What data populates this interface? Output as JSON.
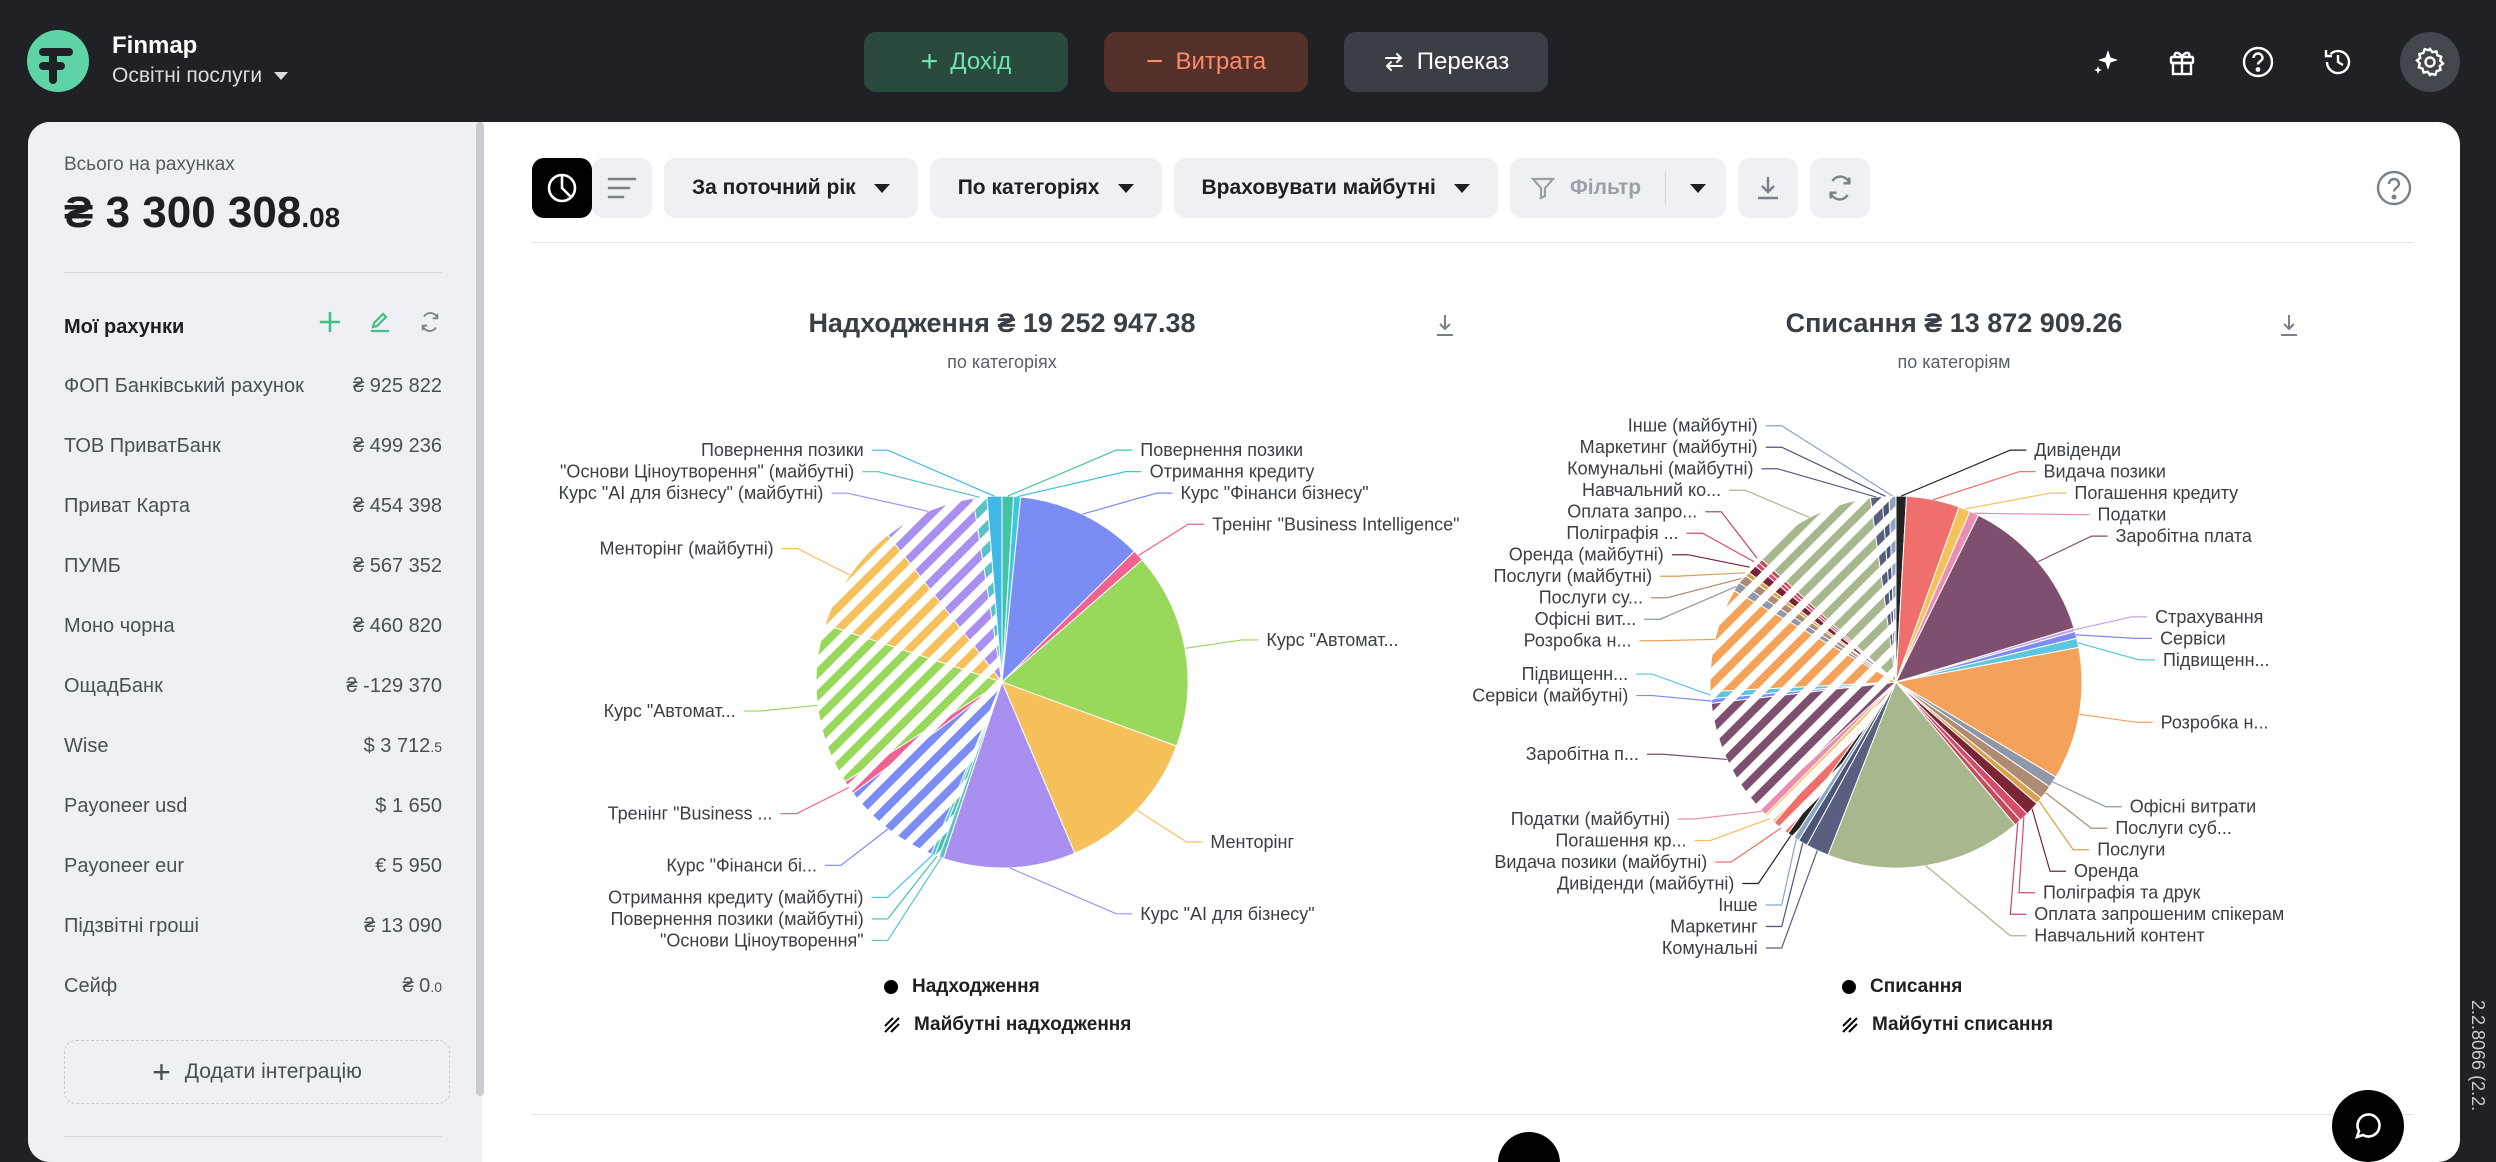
{
  "app": {
    "brand": "Finmap",
    "company": "Освітні послуги"
  },
  "top_actions": {
    "income": "Дохід",
    "expense": "Витрата",
    "transfer": "Переказ"
  },
  "top_icons": [
    "sparkle-icon",
    "gift-icon",
    "help-icon",
    "history-icon",
    "gear-icon"
  ],
  "version": "2.2.8066 (2.2.",
  "sidebar": {
    "total_label": "Всього на рахунках",
    "total_main": "₴ 3 300 308",
    "total_cents": ".08",
    "accounts_title": "Мої рахунки",
    "accounts": [
      {
        "name": "ФОП Банківський рахунок",
        "amount": "₴ 925 822",
        "cents": ""
      },
      {
        "name": "ТОВ ПриватБанк",
        "amount": "₴ 499 236",
        "cents": ""
      },
      {
        "name": "Приват Карта",
        "amount": "₴ 454 398",
        "cents": ""
      },
      {
        "name": "ПУМБ",
        "amount": "₴ 567 352",
        "cents": ""
      },
      {
        "name": "Моно чорна",
        "amount": "₴ 460 820",
        "cents": ""
      },
      {
        "name": "ОщадБанк",
        "amount": "₴ -129 370",
        "cents": ""
      },
      {
        "name": "Wise",
        "amount": "$  3 712",
        "cents": ".5"
      },
      {
        "name": "Payoneer usd",
        "amount": "$  1 650",
        "cents": ""
      },
      {
        "name": "Payoneer eur",
        "amount": "€ 5 950",
        "cents": ""
      },
      {
        "name": "Підзвітні гроші",
        "amount": "₴ 13 090",
        "cents": ""
      },
      {
        "name": "Сейф",
        "amount": "₴ 0",
        "cents": ".0"
      }
    ],
    "add_integration": "Додати інтеграцію"
  },
  "toolbar": {
    "period": "За поточний рік",
    "grouping": "По категоріях",
    "future": "Враховувати майбутні",
    "filter": "Фільтр"
  },
  "colors": {
    "income_btn": "#2a4a3d",
    "expense_btn": "#533029",
    "accent_green": "#5fd3a8"
  },
  "chart_data": [
    {
      "type": "pie",
      "title": "Надходження ₴ 19 252 947.38",
      "subtitle": "по категоріях",
      "legend": [
        "Надходження",
        "Майбутні надходження"
      ],
      "slices": [
        {
          "label": "Повернення позики",
          "value": 1.0,
          "color": "#43c3a6",
          "future": false
        },
        {
          "label": "Отримання кредиту",
          "value": 0.6,
          "color": "#3ec7e3",
          "future": false
        },
        {
          "label": "Курс \"Фінанси бізнесу\"",
          "value": 11.0,
          "color": "#7b8cf5",
          "future": false
        },
        {
          "label": "Тренінг \"Business Intelligence\"",
          "value": 1.0,
          "color": "#f06292",
          "future": false
        },
        {
          "label": "Курс \"Автомат...",
          "value": 17.0,
          "color": "#98d85b",
          "future": false
        },
        {
          "label": "Менторінг",
          "value": 13.0,
          "color": "#f6c15a",
          "future": false
        },
        {
          "label": "Курс \"AI для бізнесу\"",
          "value": 11.5,
          "color": "#a98ff0",
          "future": false
        },
        {
          "label": "\"Основи Ціноутворення\"",
          "value": 0.4,
          "color": "#59c1c9",
          "future": false
        },
        {
          "label": "Повернення позики (майбутні)",
          "value": 0.4,
          "color": "#43c3a6",
          "future": true
        },
        {
          "label": "Отримання кредиту (майбутні)",
          "value": 0.3,
          "color": "#3ec7e3",
          "future": true
        },
        {
          "label": "Курс \"Фінанси бі...",
          "value": 8.6,
          "color": "#7b8cf5",
          "future": true
        },
        {
          "label": "Тренінг \"Business ...",
          "value": 1.2,
          "color": "#f06292",
          "future": true
        },
        {
          "label": "Курс \"Автомат...",
          "value": 14.0,
          "color": "#98d85b",
          "future": true
        },
        {
          "label": "Менторінг (майбутні)",
          "value": 9.5,
          "color": "#f6c15a",
          "future": true
        },
        {
          "label": "Курс \"AI для бізнесу\" (майбутні)",
          "value": 8.0,
          "color": "#a98ff0",
          "future": true
        },
        {
          "label": "\"Основи Ціноутворення\" (майбутні)",
          "value": 1.2,
          "color": "#59c1c9",
          "future": true
        },
        {
          "label": "Повернення позики",
          "value": 1.3,
          "color": "#3fb8e8",
          "future": false
        }
      ]
    },
    {
      "type": "pie",
      "title": "Списання ₴ 13 872 909.26",
      "subtitle": "по категоріям",
      "legend": [
        "Списання",
        "Майбутні списання"
      ],
      "slices": [
        {
          "label": "Дивіденди",
          "value": 0.9,
          "color": "#222222",
          "future": false
        },
        {
          "label": "Видача позики",
          "value": 4.6,
          "color": "#ef6f6c",
          "future": false
        },
        {
          "label": "Погашення кредиту",
          "value": 1.0,
          "color": "#f6c15a",
          "future": false
        },
        {
          "label": "Податки",
          "value": 0.8,
          "color": "#ea8fb1",
          "future": false
        },
        {
          "label": "Заробітна плата",
          "value": 13.0,
          "color": "#7e4f6e",
          "future": false
        },
        {
          "label": "Страхування",
          "value": 0.3,
          "color": "#c7a2e8",
          "future": false
        },
        {
          "label": "Сервіси",
          "value": 0.6,
          "color": "#7b8cf5",
          "future": false
        },
        {
          "label": "Підвищенн...",
          "value": 0.8,
          "color": "#5bc7de",
          "future": false
        },
        {
          "label": "Розробка н...",
          "value": 11.5,
          "color": "#f4a259",
          "future": false
        },
        {
          "label": "Офісні витрати",
          "value": 1.0,
          "color": "#8e98a8",
          "future": false
        },
        {
          "label": "Послуги суб...",
          "value": 1.2,
          "color": "#b08b73",
          "future": false
        },
        {
          "label": "Послуги",
          "value": 0.6,
          "color": "#d9a14a",
          "future": false
        },
        {
          "label": "Оренда",
          "value": 1.2,
          "color": "#7a2436",
          "future": false
        },
        {
          "label": "Поліграфія та друк",
          "value": 0.8,
          "color": "#d84a6a",
          "future": false
        },
        {
          "label": "Оплата запрошеним спікерам",
          "value": 0.6,
          "color": "#c04c5c",
          "future": false
        },
        {
          "label": "Навчальний контент",
          "value": 17.0,
          "color": "#a7b78e",
          "future": false
        },
        {
          "label": "Комунальні",
          "value": 2.0,
          "color": "#5a5f80",
          "future": false
        },
        {
          "label": "Маркетинг",
          "value": 0.8,
          "color": "#4a5578",
          "future": false
        },
        {
          "label": "Інше",
          "value": 0.5,
          "color": "#8ea3c4",
          "future": false
        },
        {
          "label": "Дивіденди (майбутні)",
          "value": 0.6,
          "color": "#222222",
          "future": true
        },
        {
          "label": "Видача позики (майбутні)",
          "value": 1.5,
          "color": "#ef6f6c",
          "future": true
        },
        {
          "label": "Погашення кр...",
          "value": 1.0,
          "color": "#f6c15a",
          "future": true
        },
        {
          "label": "Податки (майбутні)",
          "value": 0.8,
          "color": "#ea8fb1",
          "future": true
        },
        {
          "label": "Заробітна п...",
          "value": 10.0,
          "color": "#7e4f6e",
          "future": true
        },
        {
          "label": "Сервіси (майбутні)",
          "value": 0.4,
          "color": "#7b8cf5",
          "future": true
        },
        {
          "label": "Підвищенн...",
          "value": 0.6,
          "color": "#5bc7de",
          "future": true
        },
        {
          "label": "Розробка н...",
          "value": 9.0,
          "color": "#f4a259",
          "future": true
        },
        {
          "label": "Офісні вит...",
          "value": 0.8,
          "color": "#8e98a8",
          "future": true
        },
        {
          "label": "Послуги су...",
          "value": 0.8,
          "color": "#b08b73",
          "future": true
        },
        {
          "label": "Послуги  (майбутні)",
          "value": 0.4,
          "color": "#d9a14a",
          "future": true
        },
        {
          "label": "Оренда (майбутні)",
          "value": 0.8,
          "color": "#7a2436",
          "future": true
        },
        {
          "label": "Поліграфія ...",
          "value": 0.4,
          "color": "#d84a6a",
          "future": true
        },
        {
          "label": "Оплата запро...",
          "value": 0.4,
          "color": "#c04c5c",
          "future": true
        },
        {
          "label": "Навчальний ко...",
          "value": 11.0,
          "color": "#a7b78e",
          "future": true
        },
        {
          "label": "Комунальні  (майбутні)",
          "value": 1.0,
          "color": "#5a5f80",
          "future": true
        },
        {
          "label": "Маркетинг  (майбутні)",
          "value": 0.6,
          "color": "#4a5578",
          "future": true
        },
        {
          "label": "Інше (майбутні)",
          "value": 0.6,
          "color": "#8ea3c4",
          "future": true
        }
      ]
    }
  ]
}
